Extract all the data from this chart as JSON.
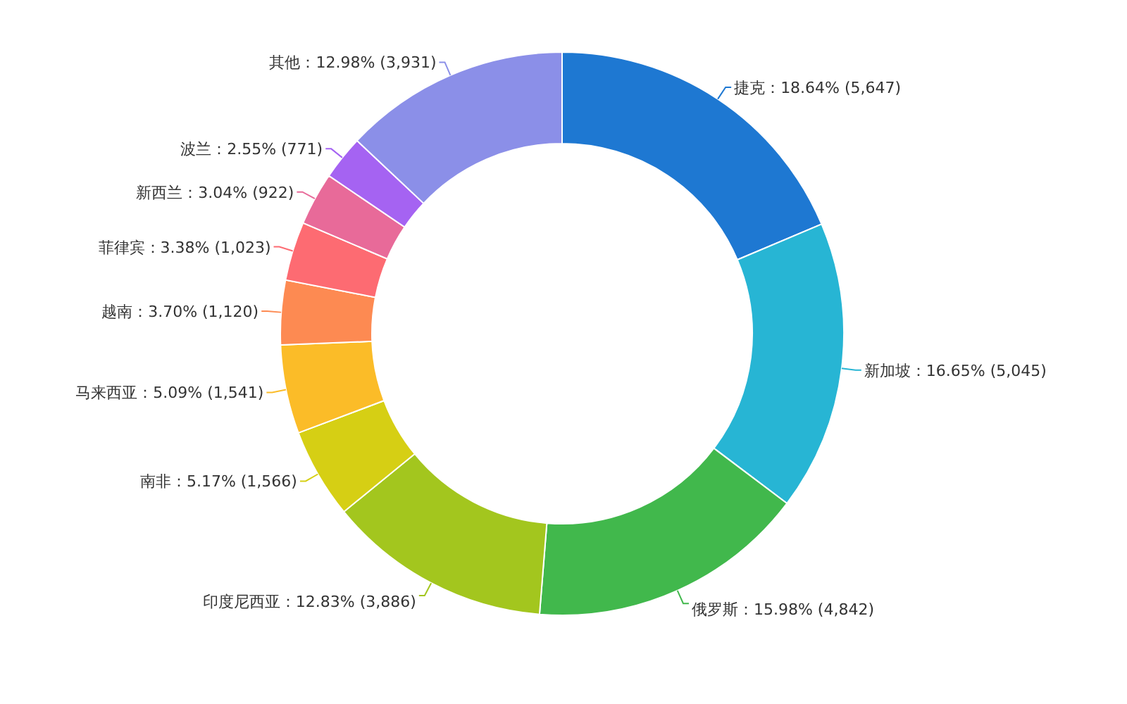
{
  "chart_data": {
    "type": "donut",
    "categories": [
      "捷克",
      "新加坡",
      "俄罗斯",
      "印度尼西亚",
      "南非",
      "马来西亚",
      "越南",
      "菲律宾",
      "新西兰",
      "波兰",
      "其他"
    ],
    "values": [
      5647,
      5045,
      4842,
      3886,
      1566,
      1541,
      1120,
      1023,
      922,
      771,
      3931
    ],
    "value_labels": [
      "18.64% (5,647)",
      "16.65% (5,045)",
      "15.98% (4,842)",
      "12.83% (3,886)",
      "5.17% (1,566)",
      "5.09% (1,541)",
      "3.70% (1,120)",
      "3.38% (1,023)",
      "3.04% (922)",
      "2.55% (771)",
      "12.98% (3,931)"
    ],
    "colors": [
      "#1e78d2",
      "#27b5d4",
      "#41b84c",
      "#a3c61e",
      "#d6cf14",
      "#fbbc28",
      "#fd8a52",
      "#fd6b72",
      "#e86a99",
      "#a563f2",
      "#8b8fe8"
    ]
  }
}
